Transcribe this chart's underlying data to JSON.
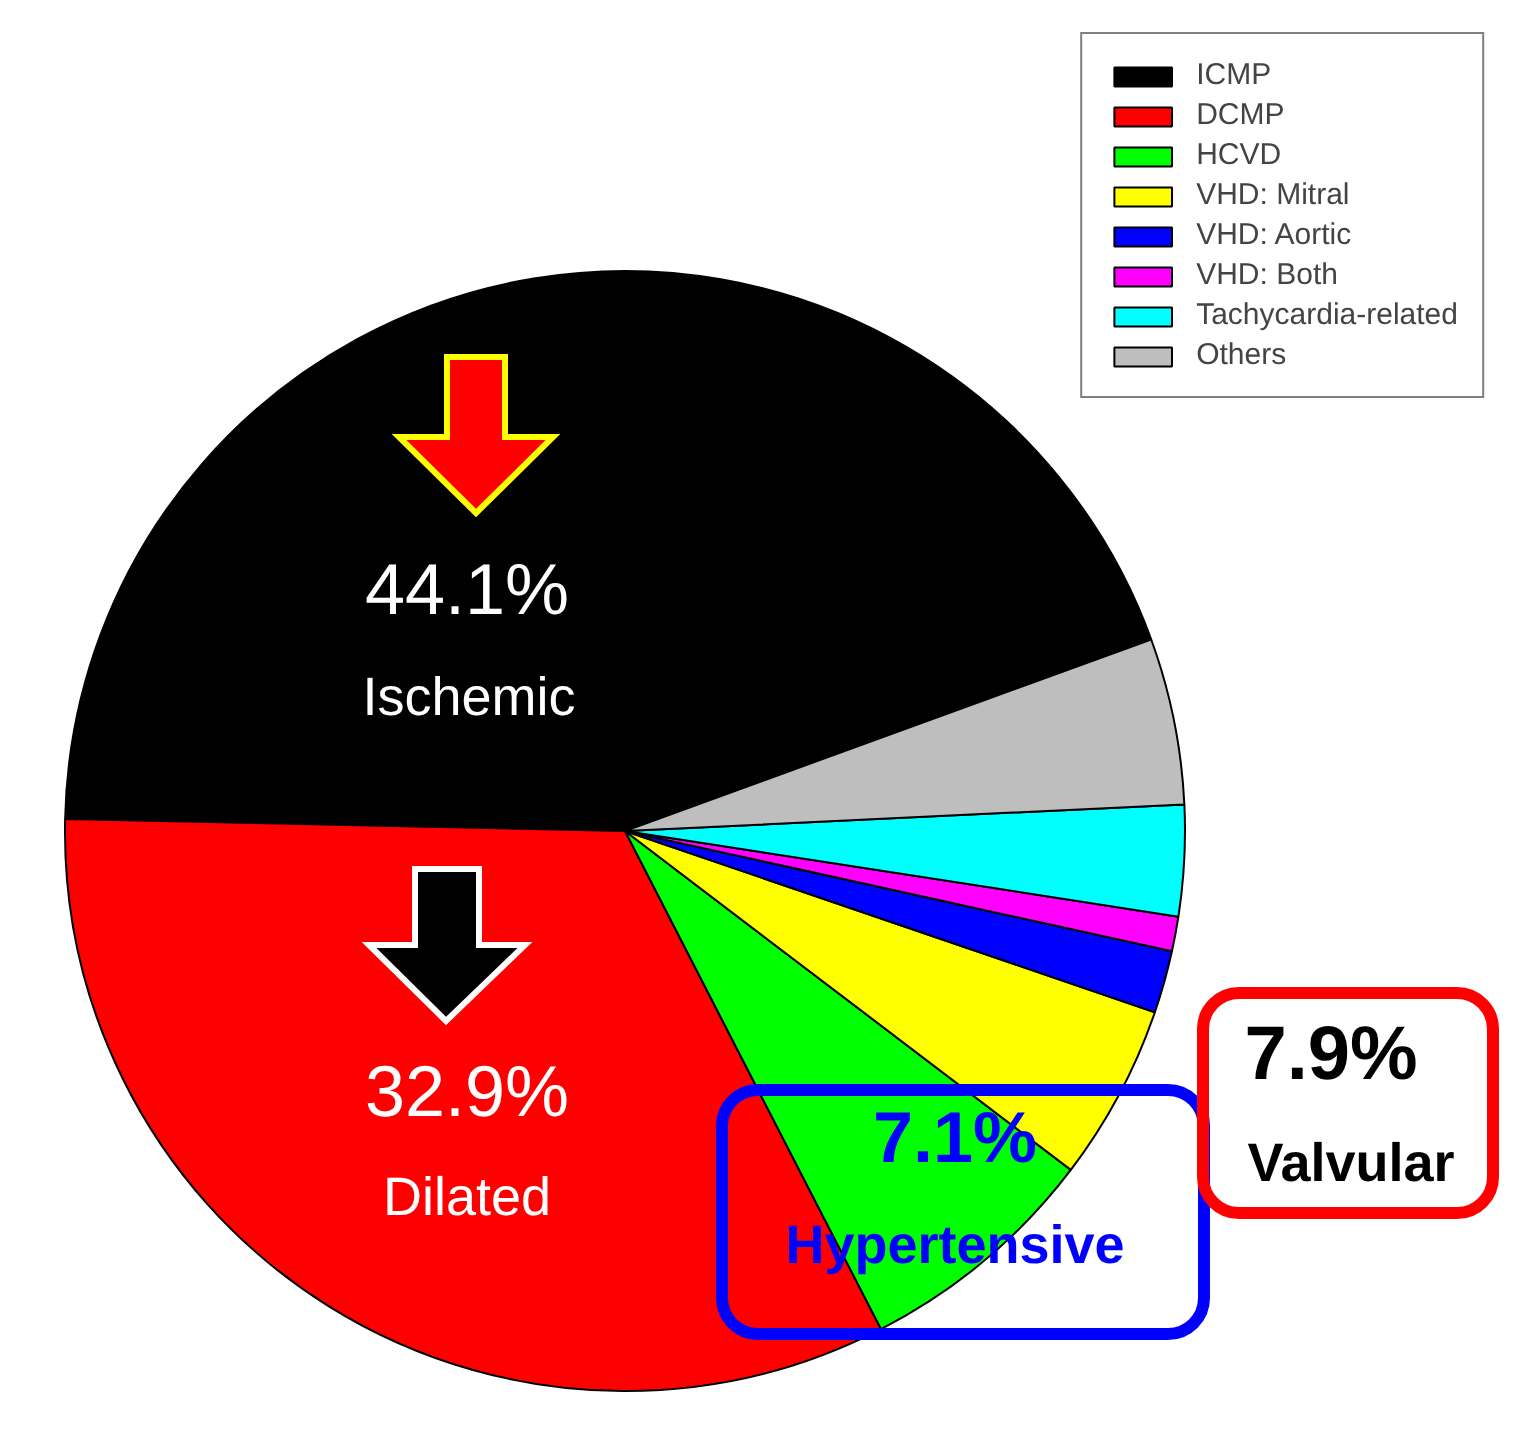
{
  "chart_data": {
    "type": "pie",
    "categories": [
      "ICMP",
      "DCMP",
      "HCVD",
      "VHD: Mitral",
      "VHD: Aortic",
      "VHD: Both",
      "Tachycardia-related",
      "Others"
    ],
    "values": [
      44.1,
      32.9,
      7.1,
      5.1,
      1.8,
      1.0,
      3.2,
      4.8
    ],
    "colors": [
      "#000000",
      "#ff0000",
      "#00ff00",
      "#ffff00",
      "#0000ff",
      "#ff00ff",
      "#00ffff",
      "#bebebe"
    ],
    "value_labels": [
      "44.1%",
      "32.9%",
      "7.1%",
      null,
      null,
      null,
      null,
      null
    ],
    "annotations": [
      "Ischemic",
      "Dilated",
      "Hypertensive",
      "7.9%",
      "Valvular"
    ],
    "legend": "top right"
  }
}
